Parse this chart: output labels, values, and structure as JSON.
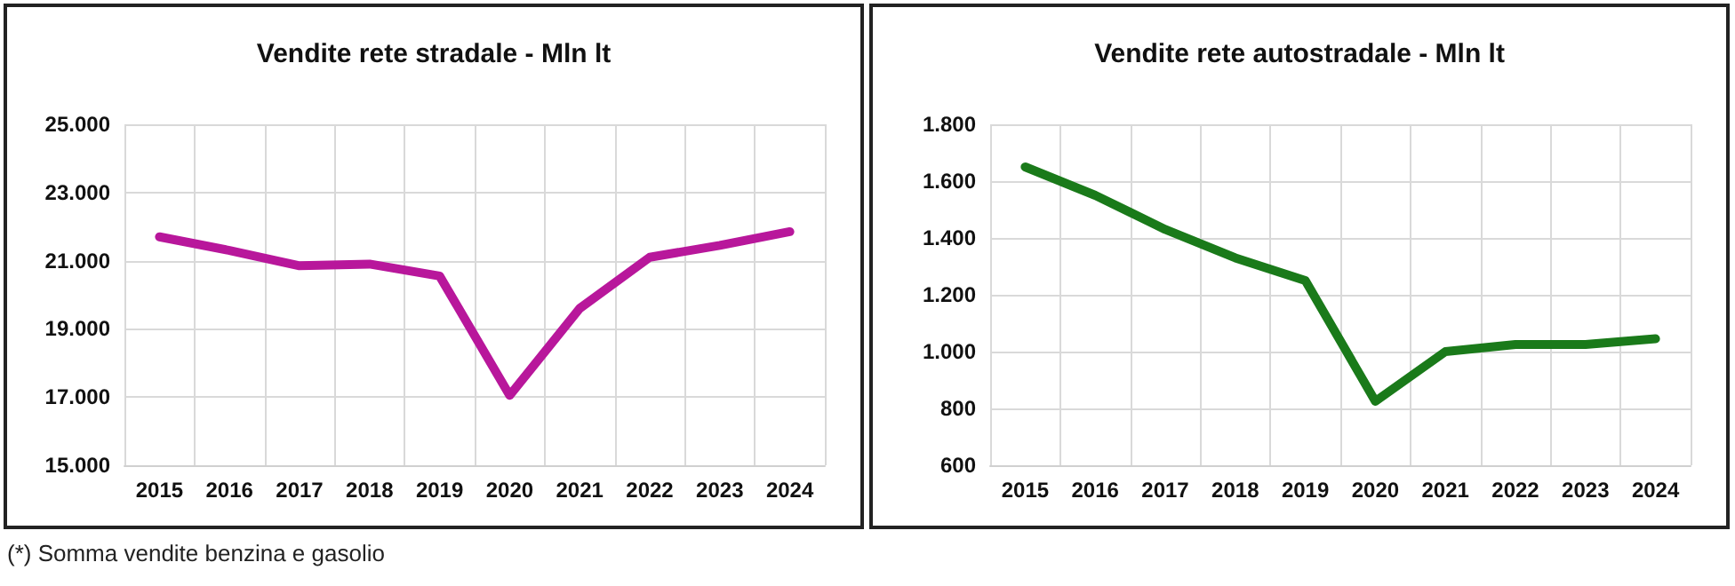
{
  "chart_data": [
    {
      "type": "line",
      "title": "Vendite rete stradale - Mln lt",
      "categories": [
        "2015",
        "2016",
        "2017",
        "2018",
        "2019",
        "2020",
        "2021",
        "2022",
        "2023",
        "2024"
      ],
      "series": [
        {
          "color": "#b8179b",
          "values": [
            21700,
            21300,
            20850,
            20900,
            20550,
            17050,
            19600,
            21100,
            21450,
            21850
          ]
        }
      ],
      "ylim": [
        15000,
        25000
      ],
      "yticks": [
        {
          "value": 15000,
          "label": "15.000"
        },
        {
          "value": 17000,
          "label": "17.000"
        },
        {
          "value": 19000,
          "label": "19.000"
        },
        {
          "value": 21000,
          "label": "21.000"
        },
        {
          "value": 23000,
          "label": "23.000"
        },
        {
          "value": 25000,
          "label": "25.000"
        }
      ],
      "grid": true,
      "marker": "none",
      "annotations": [
        "(*) Somma vendite benzina e gasolio"
      ]
    },
    {
      "type": "line",
      "title": "Vendite rete autostradale - Mln lt",
      "categories": [
        "2015",
        "2016",
        "2017",
        "2018",
        "2019",
        "2020",
        "2021",
        "2022",
        "2023",
        "2024"
      ],
      "series": [
        {
          "color": "#1a7a1a",
          "values": [
            1650,
            1550,
            1430,
            1330,
            1250,
            825,
            1000,
            1025,
            1025,
            1045
          ]
        }
      ],
      "ylim": [
        600,
        1800
      ],
      "yticks": [
        {
          "value": 600,
          "label": "600"
        },
        {
          "value": 800,
          "label": "800"
        },
        {
          "value": 1000,
          "label": "1.000"
        },
        {
          "value": 1200,
          "label": "1.200"
        },
        {
          "value": 1400,
          "label": "1.400"
        },
        {
          "value": 1600,
          "label": "1.600"
        },
        {
          "value": 1800,
          "label": "1.800"
        }
      ],
      "grid": true,
      "marker": "none"
    }
  ]
}
